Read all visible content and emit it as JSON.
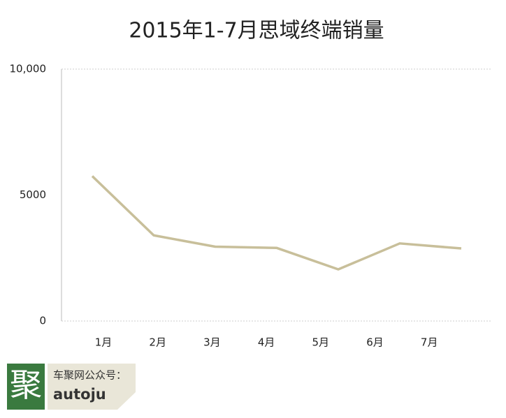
{
  "chart_data": {
    "type": "line",
    "title": "2015年1-7月思域终端销量",
    "categories": [
      "1月",
      "2月",
      "3月",
      "4月",
      "5月",
      "6月",
      "7月"
    ],
    "series": [
      {
        "color": "#c8bf9a",
        "values": [
          5750,
          3400,
          2950,
          2900,
          2050,
          3080,
          2880
        ]
      }
    ],
    "ylim": [
      0,
      10000
    ],
    "yticks": [
      0,
      5000,
      {
        "value": 10000,
        "label": "10,000"
      }
    ],
    "grid": true
  },
  "watermark": {
    "logo": "聚",
    "line1": "车聚网公众号：",
    "line2": "autoju"
  }
}
